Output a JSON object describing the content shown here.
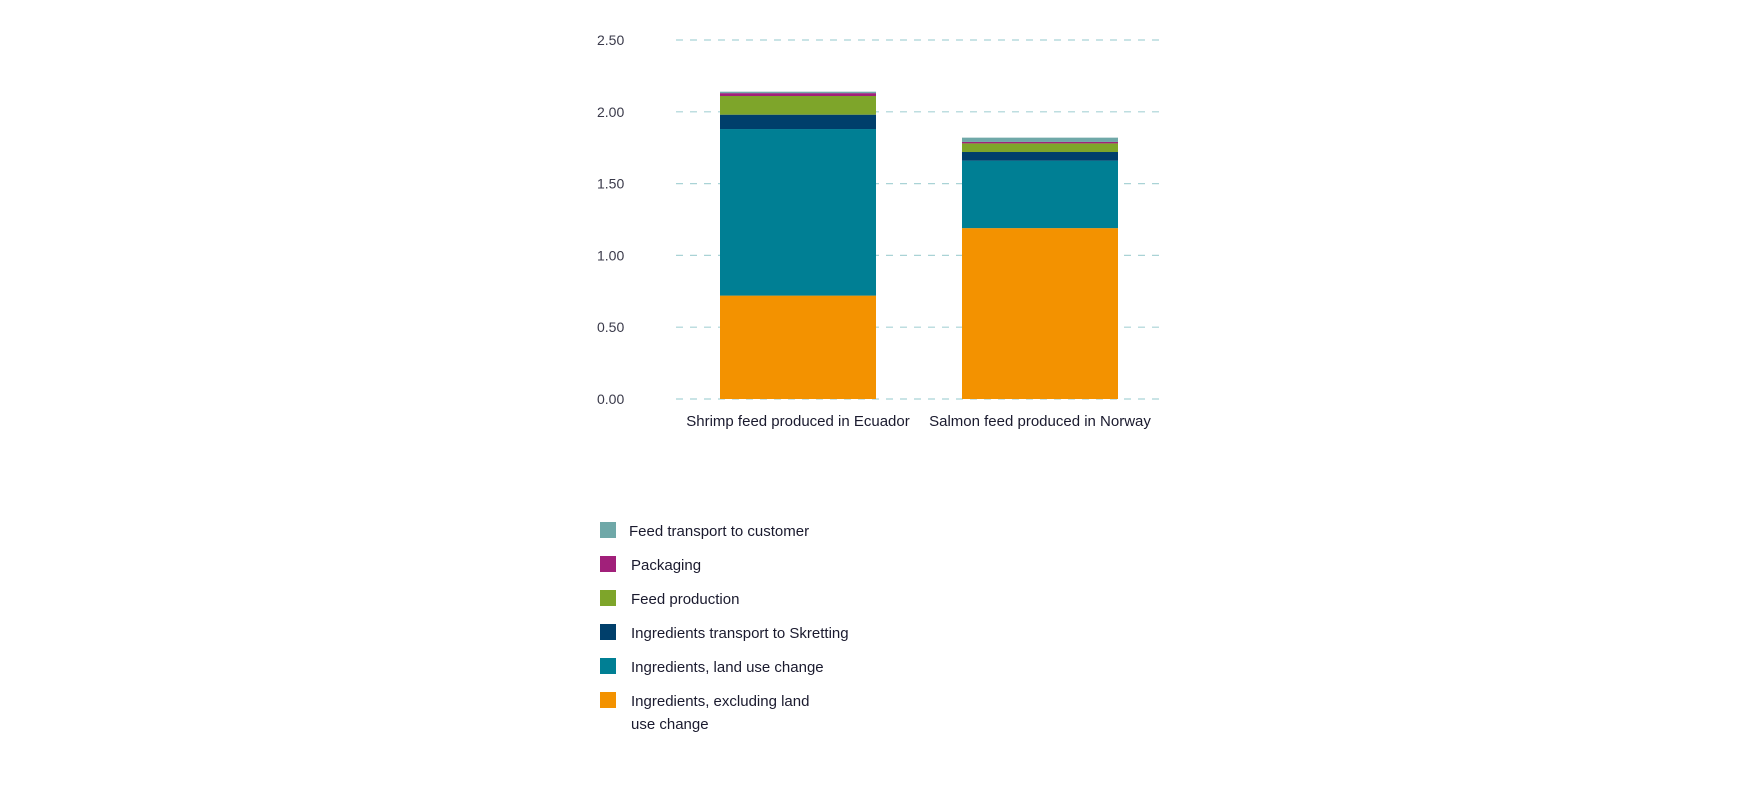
{
  "chart_data": {
    "type": "bar",
    "stacked": true,
    "categories": [
      "Shrimp feed produced in Ecuador",
      "Salmon feed produced in Norway"
    ],
    "ylim": [
      0,
      2.5
    ],
    "yticks": [
      "0.00",
      "0.50",
      "1.00",
      "1.50",
      "2.00",
      "2.50"
    ],
    "ytick_values": [
      0,
      0.5,
      1.0,
      1.5,
      2.0,
      2.5
    ],
    "grid": true,
    "legend_position": "bottom-left",
    "series": [
      {
        "name": "Ingredients, excluding land use change",
        "color": "#f39200",
        "values": [
          0.72,
          1.19
        ]
      },
      {
        "name": "Ingredients, land use change",
        "color": "#007f94",
        "values": [
          1.16,
          0.47
        ]
      },
      {
        "name": "Ingredients transport to Skretting",
        "color": "#003f6b",
        "values": [
          0.1,
          0.06
        ]
      },
      {
        "name": "Feed production",
        "color": "#7ea52a",
        "values": [
          0.13,
          0.06
        ]
      },
      {
        "name": "Packaging",
        "color": "#a1207a",
        "values": [
          0.02,
          0.01
        ]
      },
      {
        "name": "Feed transport to customer",
        "color": "#6fa8a8",
        "values": [
          0.01,
          0.03
        ]
      }
    ]
  },
  "legend": {
    "items": [
      {
        "label": "Feed transport to customer",
        "color": "#6fa8a8"
      },
      {
        "label": "Packaging",
        "color": "#a1207a"
      },
      {
        "label": "Feed production",
        "color": "#7ea52a"
      },
      {
        "label": "Ingredients transport to Skretting",
        "color": "#003f6b"
      },
      {
        "label": "Ingredients, land use change",
        "color": "#007f94"
      },
      {
        "label": "Ingredients, excluding land use change",
        "color": "#f39200"
      }
    ]
  }
}
